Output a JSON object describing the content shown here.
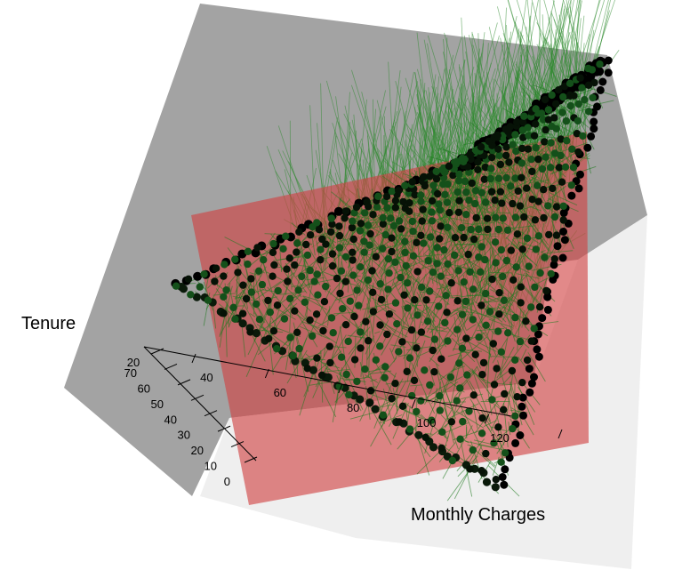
{
  "chart_data": {
    "type": "scatter",
    "dimensions": 3,
    "xlabel": "Monthly Charges",
    "ylabel": "Tenure",
    "x_ticks": [
      "20",
      "40",
      "60",
      "80",
      "100",
      "120"
    ],
    "y_ticks": [
      "0",
      "10",
      "20",
      "30",
      "40",
      "50",
      "60",
      "70"
    ],
    "xlim": [
      18,
      120
    ],
    "ylim": [
      0,
      72
    ],
    "point_color": "#000000",
    "residual_line_color": "#1f7a1f",
    "regression_plane_color": "#d04040",
    "box_color_back": "#a0a0a0",
    "box_color_floor": "#ededed",
    "grid": false,
    "legend": "none",
    "points_x": [
      20,
      25,
      30,
      35,
      40,
      45,
      50,
      55,
      60,
      65,
      70,
      75,
      80,
      85,
      90,
      95,
      100,
      105,
      110,
      115,
      118
    ],
    "points_y": [
      0,
      4,
      8,
      12,
      16,
      20,
      24,
      28,
      32,
      36,
      40,
      44,
      48,
      52,
      56,
      60,
      64,
      68,
      72
    ]
  }
}
